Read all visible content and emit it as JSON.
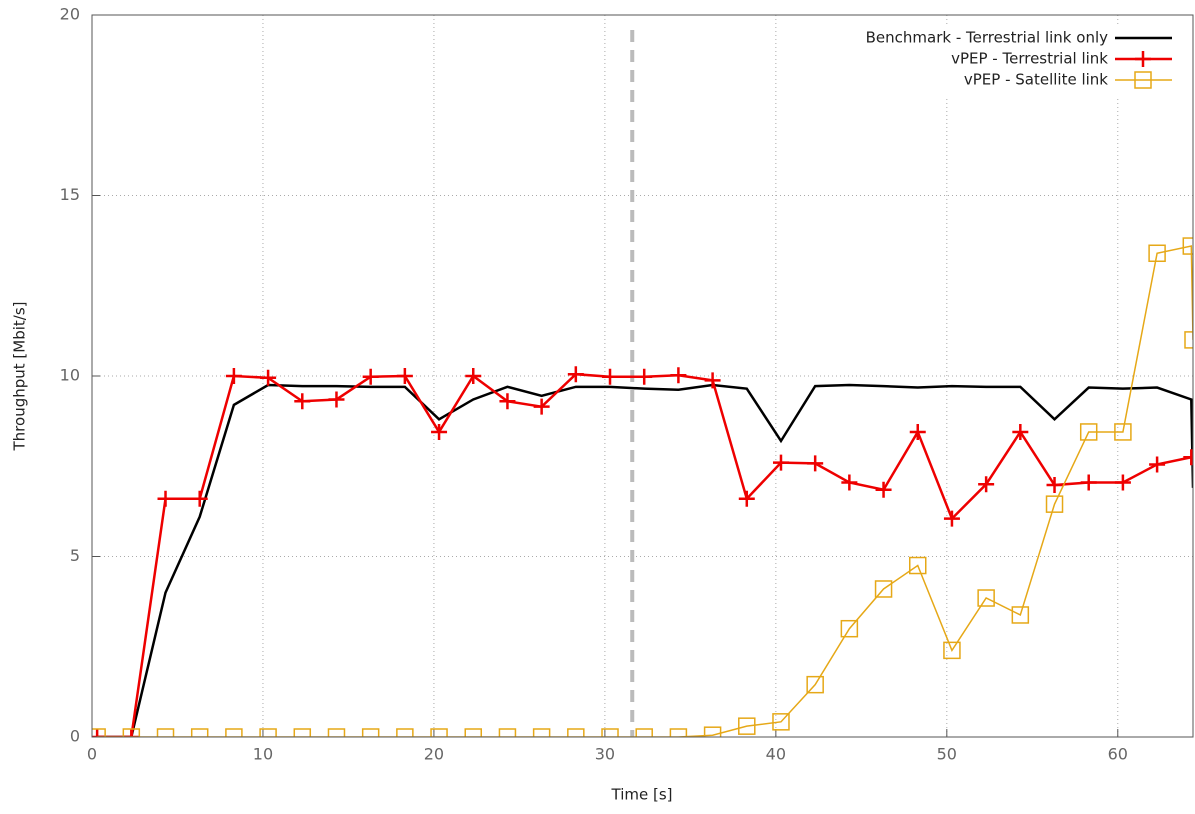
{
  "chart_data": {
    "type": "line",
    "xlabel": "Time [s]",
    "ylabel": "Throughput [Mbit/s]",
    "xlim": [
      0,
      64.4
    ],
    "ylim": [
      0,
      20
    ],
    "xticks": [
      0,
      10,
      20,
      30,
      40,
      50,
      60
    ],
    "yticks": [
      0,
      5,
      10,
      15,
      20
    ],
    "grid": true,
    "legend": "top-right",
    "vlines": [
      31.6
    ],
    "series": [
      {
        "name": "Benchmark - Terrestrial link only",
        "color": "#000000",
        "marker": "none",
        "x": [
          0.3,
          2.3,
          4.3,
          6.3,
          8.3,
          10.3,
          12.3,
          14.3,
          16.3,
          18.3,
          20.3,
          22.3,
          24.3,
          26.3,
          28.3,
          30.3,
          32.3,
          34.3,
          36.3,
          38.3,
          40.3,
          42.3,
          44.3,
          46.3,
          48.3,
          50.3,
          52.3,
          54.3,
          56.3,
          58.3,
          60.3,
          62.3,
          64.3,
          64.4
        ],
        "values": [
          0,
          0,
          4.0,
          6.1,
          9.2,
          9.75,
          9.72,
          9.72,
          9.7,
          9.7,
          8.8,
          9.35,
          9.7,
          9.45,
          9.7,
          9.7,
          9.65,
          9.62,
          9.75,
          9.65,
          8.2,
          9.72,
          9.75,
          9.72,
          9.68,
          9.72,
          9.7,
          9.7,
          8.8,
          9.68,
          9.65,
          9.68,
          9.35,
          6.9
        ]
      },
      {
        "name": "vPEP - Terrestrial link",
        "color": "#ee0000",
        "marker": "plus",
        "x": [
          0.3,
          2.3,
          4.3,
          6.3,
          8.3,
          10.3,
          12.3,
          14.3,
          16.3,
          18.3,
          20.3,
          22.3,
          24.3,
          26.3,
          28.3,
          30.3,
          32.3,
          34.3,
          36.3,
          38.3,
          40.3,
          42.3,
          44.3,
          46.3,
          48.3,
          50.3,
          52.3,
          54.3,
          56.3,
          58.3,
          60.3,
          62.3,
          64.3
        ],
        "values": [
          0,
          0,
          6.6,
          6.6,
          10.0,
          9.95,
          9.3,
          9.35,
          9.98,
          10.0,
          8.45,
          10.0,
          9.3,
          9.15,
          10.05,
          9.98,
          9.98,
          10.02,
          9.88,
          6.6,
          7.6,
          7.58,
          7.05,
          6.85,
          8.45,
          6.05,
          7.0,
          8.45,
          6.98,
          7.05,
          7.05,
          7.55,
          7.75
        ]
      },
      {
        "name": "vPEP - Satellite link",
        "color": "#e6a817",
        "marker": "square",
        "x": [
          0.3,
          2.3,
          4.3,
          6.3,
          8.3,
          10.3,
          12.3,
          14.3,
          16.3,
          18.3,
          20.3,
          22.3,
          24.3,
          26.3,
          28.3,
          30.3,
          32.3,
          34.3,
          36.3,
          38.3,
          40.3,
          42.3,
          44.3,
          46.3,
          48.3,
          50.3,
          52.3,
          54.3,
          56.3,
          58.3,
          60.3,
          62.3,
          64.3,
          64.4
        ],
        "values": [
          0,
          0,
          0,
          0,
          0,
          0,
          0,
          0,
          0,
          0,
          0,
          0,
          0,
          0,
          0,
          0,
          0,
          0,
          0.05,
          0.3,
          0.42,
          1.45,
          3.0,
          4.1,
          4.75,
          2.4,
          3.85,
          3.38,
          6.45,
          8.45,
          8.45,
          13.4,
          13.6,
          11.0
        ]
      }
    ]
  }
}
